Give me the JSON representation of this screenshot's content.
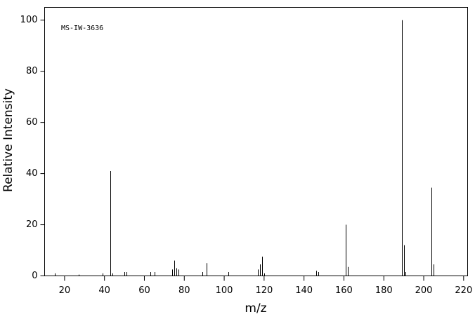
{
  "chart_data": {
    "type": "bar",
    "annotation": "MS-IW-3636",
    "xlabel": "m/z",
    "ylabel": "Relative Intensity",
    "x": [
      15,
      27,
      39,
      43,
      44,
      50,
      51,
      63,
      65,
      74,
      75,
      76,
      77,
      89,
      91,
      102,
      117,
      118,
      119,
      120,
      146,
      147,
      161,
      162,
      189,
      190,
      191,
      204,
      205
    ],
    "values": [
      1,
      0.5,
      1,
      41,
      1,
      1.5,
      1.5,
      1.5,
      1.5,
      2.5,
      6,
      3,
      2.5,
      1.5,
      5,
      1.5,
      2.5,
      4.5,
      7.5,
      1,
      2,
      1.5,
      20,
      3.5,
      100,
      12,
      1.5,
      34.5,
      4.5
    ],
    "color": "#000000",
    "xlim": [
      10,
      222
    ],
    "xticks": [
      20,
      40,
      60,
      80,
      100,
      120,
      140,
      160,
      180,
      200,
      220
    ],
    "ylim": [
      0,
      105
    ],
    "yticks": [
      0,
      20,
      40,
      60,
      80,
      100
    ]
  }
}
